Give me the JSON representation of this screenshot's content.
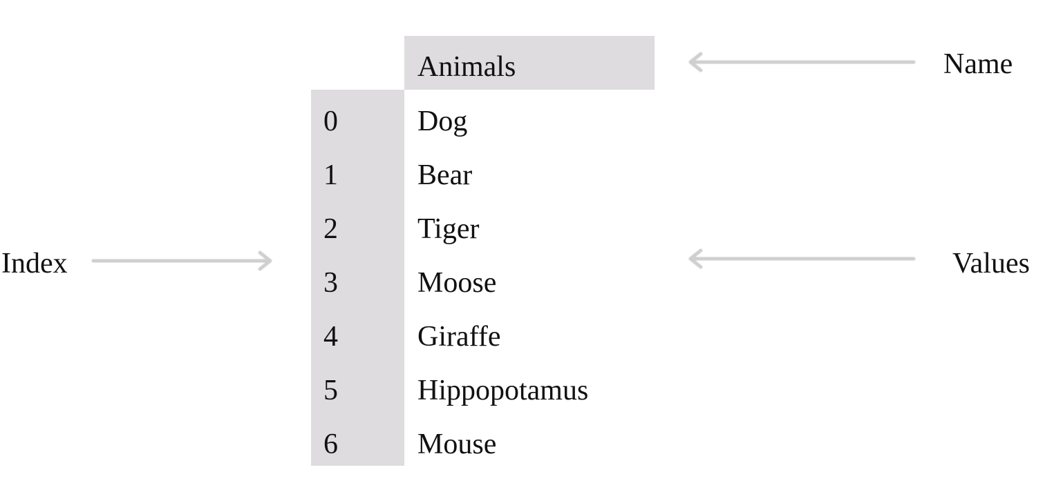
{
  "series": {
    "name": "Animals",
    "index": [
      "0",
      "1",
      "2",
      "3",
      "4",
      "5",
      "6"
    ],
    "values": [
      "Dog",
      "Bear",
      "Tiger",
      "Moose",
      "Giraffe",
      "Hippopotamus",
      "Mouse"
    ]
  },
  "labels": {
    "name": "Name",
    "values": "Values",
    "index": "Index"
  },
  "colors": {
    "cell_fill": "#dedcde",
    "arrow": "#d0d0d0",
    "text": "#111111"
  }
}
